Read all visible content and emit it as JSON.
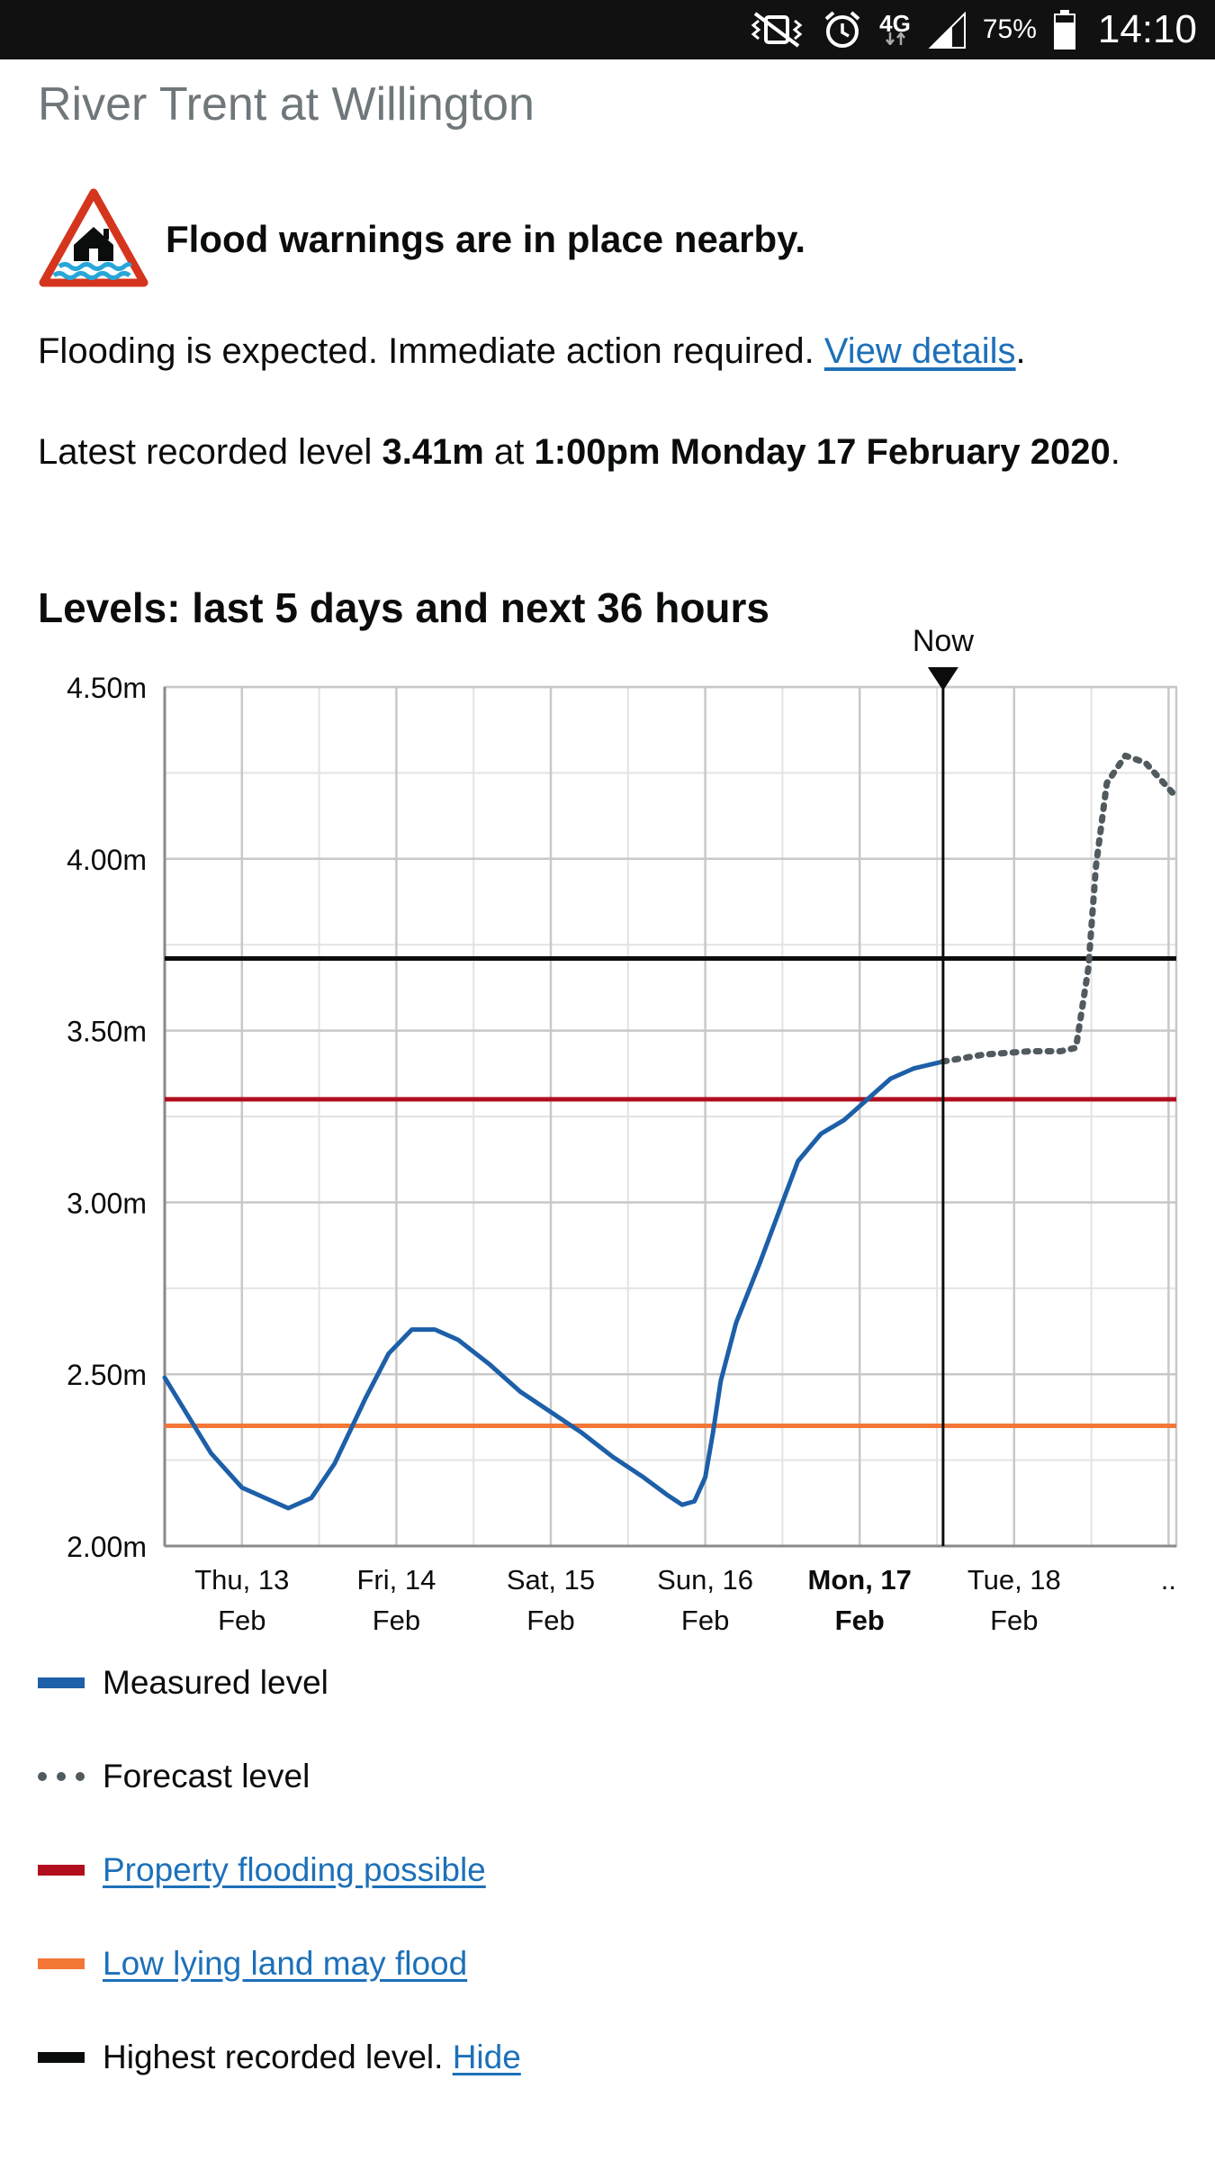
{
  "status_bar": {
    "network": "4G",
    "battery": "75%",
    "time": "14:10"
  },
  "page": {
    "title": "River Trent at Willington"
  },
  "warning": {
    "text": "Flood warnings are in place nearby."
  },
  "flooding": {
    "text": "Flooding is expected. Immediate action required.",
    "link": "View details",
    "suffix": "."
  },
  "latest": {
    "prefix": "Latest recorded level",
    "level": "3.41m",
    "at": "at",
    "time": "1:00pm Monday 17 February 2020",
    "suffix": "."
  },
  "chart_title": "Levels: last 5 days and next 36 hours",
  "chart_data": {
    "type": "line",
    "title": "Levels: last 5 days and next 36 hours",
    "now_label": "Now",
    "now_day": 4.54,
    "ylim": [
      2.0,
      4.5
    ],
    "xlim": [
      -0.5,
      6.05
    ],
    "y_ticks": [
      {
        "v": 2.0,
        "label": "2.00m"
      },
      {
        "v": 2.5,
        "label": "2.50m"
      },
      {
        "v": 3.0,
        "label": "3.00m"
      },
      {
        "v": 3.5,
        "label": "3.50m"
      },
      {
        "v": 4.0,
        "label": "4.00m"
      },
      {
        "v": 4.5,
        "label": "4.50m"
      }
    ],
    "x_ticks": [
      {
        "day": 0,
        "line1": "Thu, 13",
        "line2": "Feb",
        "bold": false
      },
      {
        "day": 1,
        "line1": "Fri, 14",
        "line2": "Feb",
        "bold": false
      },
      {
        "day": 2,
        "line1": "Sat, 15",
        "line2": "Feb",
        "bold": false
      },
      {
        "day": 3,
        "line1": "Sun, 16",
        "line2": "Feb",
        "bold": false
      },
      {
        "day": 4,
        "line1": "Mon, 17",
        "line2": "Feb",
        "bold": true
      },
      {
        "day": 5,
        "line1": "Tue, 18",
        "line2": "Feb",
        "bold": false
      },
      {
        "day": 6,
        "line1": "..",
        "line2": "",
        "bold": false
      }
    ],
    "series": [
      {
        "name": "Measured level",
        "color": "#1d5fa8",
        "style": "solid",
        "points": [
          [
            -0.5,
            2.49
          ],
          [
            -0.35,
            2.38
          ],
          [
            -0.2,
            2.27
          ],
          [
            0.0,
            2.17
          ],
          [
            0.15,
            2.14
          ],
          [
            0.3,
            2.11
          ],
          [
            0.45,
            2.14
          ],
          [
            0.6,
            2.24
          ],
          [
            0.8,
            2.43
          ],
          [
            0.95,
            2.56
          ],
          [
            1.1,
            2.63
          ],
          [
            1.25,
            2.63
          ],
          [
            1.4,
            2.6
          ],
          [
            1.6,
            2.53
          ],
          [
            1.8,
            2.45
          ],
          [
            2.0,
            2.39
          ],
          [
            2.2,
            2.33
          ],
          [
            2.4,
            2.26
          ],
          [
            2.6,
            2.2
          ],
          [
            2.75,
            2.15
          ],
          [
            2.85,
            2.12
          ],
          [
            2.93,
            2.13
          ],
          [
            3.0,
            2.2
          ],
          [
            3.05,
            2.33
          ],
          [
            3.1,
            2.48
          ],
          [
            3.2,
            2.65
          ],
          [
            3.35,
            2.82
          ],
          [
            3.5,
            3.0
          ],
          [
            3.6,
            3.12
          ],
          [
            3.75,
            3.2
          ],
          [
            3.9,
            3.24
          ],
          [
            4.05,
            3.3
          ],
          [
            4.2,
            3.36
          ],
          [
            4.35,
            3.39
          ],
          [
            4.54,
            3.41
          ]
        ]
      },
      {
        "name": "Forecast level",
        "color": "#505a5f",
        "style": "dotted",
        "points": [
          [
            4.54,
            3.41
          ],
          [
            4.8,
            3.43
          ],
          [
            5.1,
            3.44
          ],
          [
            5.3,
            3.44
          ],
          [
            5.4,
            3.45
          ],
          [
            5.48,
            3.68
          ],
          [
            5.53,
            3.98
          ],
          [
            5.6,
            4.22
          ],
          [
            5.72,
            4.3
          ],
          [
            5.85,
            4.28
          ],
          [
            5.95,
            4.23
          ],
          [
            6.05,
            4.18
          ]
        ]
      }
    ],
    "thresholds": [
      {
        "name": "Highest recorded level",
        "value": 3.71,
        "color": "#0b0c0c"
      },
      {
        "name": "Property flooding possible",
        "value": 3.3,
        "color": "#b10e1e"
      },
      {
        "name": "Low lying land may flood",
        "value": 2.35,
        "color": "#f47738"
      }
    ]
  },
  "legend": {
    "measured": "Measured level",
    "forecast": "Forecast level",
    "property": "Property flooding possible",
    "low_lying": "Low lying land may flood",
    "highest": "Highest recorded level.",
    "hide": "Hide"
  },
  "colors": {
    "measured": "#1d5fa8",
    "forecast": "#505a5f",
    "property": "#b10e1e",
    "low_lying": "#f47738",
    "highest": "#0b0c0c",
    "link": "#1d70b8"
  }
}
